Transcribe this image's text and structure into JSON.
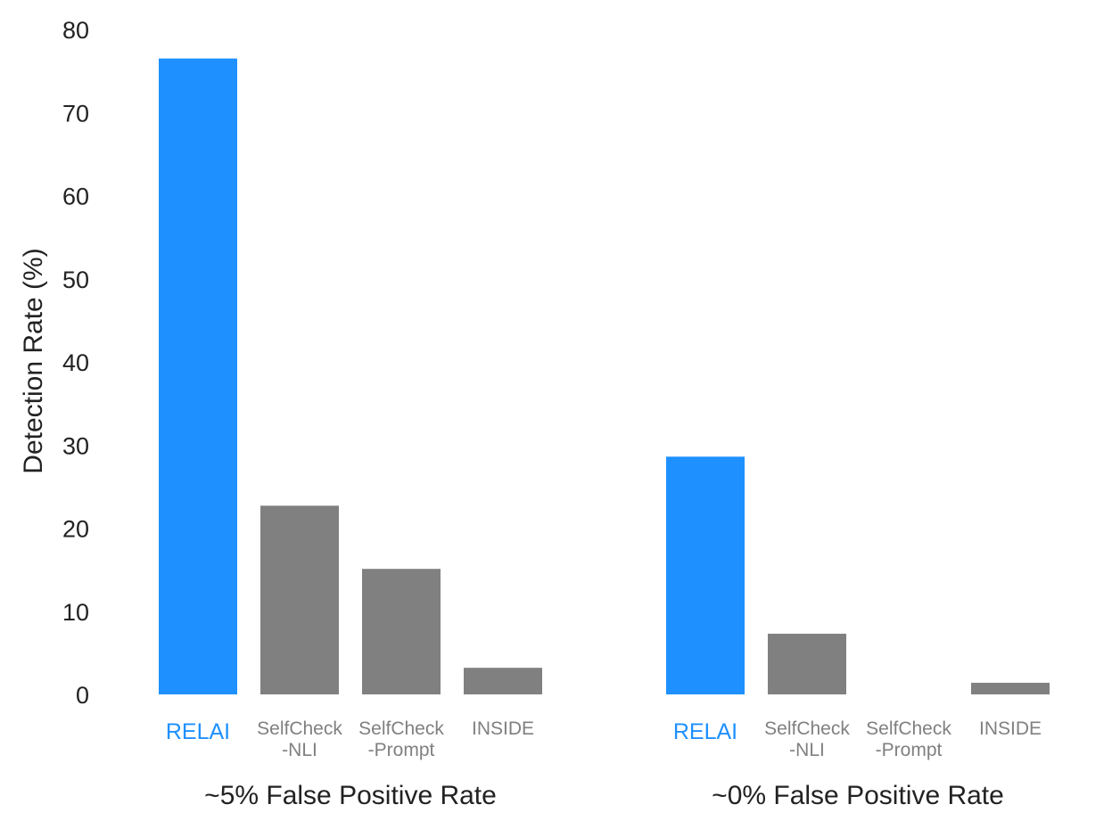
{
  "chart_data": {
    "type": "bar",
    "title": "",
    "ylabel": "Detection Rate (%)",
    "ylim": [
      0,
      80
    ],
    "yticks": [
      0,
      10,
      20,
      30,
      40,
      50,
      60,
      70,
      80
    ],
    "grid": false,
    "legend": "none",
    "colors": {
      "highlight": "#1e90ff",
      "default": "#808080",
      "text": "#222222"
    },
    "groups": [
      {
        "label": "~5% False Positive Rate",
        "bars": [
          {
            "category": [
              "RELAI"
            ],
            "value": 76.5,
            "highlight": true
          },
          {
            "category": [
              "SelfCheck",
              "-NLI"
            ],
            "value": 22.7,
            "highlight": false
          },
          {
            "category": [
              "SelfCheck",
              "-Prompt"
            ],
            "value": 15.1,
            "highlight": false
          },
          {
            "category": [
              "INSIDE"
            ],
            "value": 3.2,
            "highlight": false
          }
        ]
      },
      {
        "label": "~0% False Positive Rate",
        "bars": [
          {
            "category": [
              "RELAI"
            ],
            "value": 28.6,
            "highlight": true
          },
          {
            "category": [
              "SelfCheck",
              "-NLI"
            ],
            "value": 7.3,
            "highlight": false
          },
          {
            "category": [
              "SelfCheck",
              "-Prompt"
            ],
            "value": 0,
            "highlight": false
          },
          {
            "category": [
              "INSIDE"
            ],
            "value": 1.4,
            "highlight": false
          }
        ]
      }
    ]
  }
}
